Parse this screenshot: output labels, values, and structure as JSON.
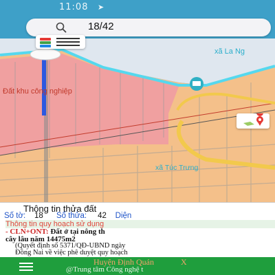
{
  "status_bar": {
    "time": "11:08",
    "nav_glyph": "➤"
  },
  "search": {
    "query": "18/42",
    "icon": "search-icon"
  },
  "map": {
    "labels": {
      "commune_north": "xã La Ng",
      "industrial": "Đất khu công nghiệp",
      "commune_south": "xã Túc Trưng"
    },
    "colors": {
      "agri": "#f4c08a",
      "industrial": "#f0a0a0",
      "boundary": "#55d8ee",
      "road": "#f2c94c",
      "line": "#c23a2b",
      "accent": "#1f9e3d"
    }
  },
  "panel": {
    "title": "Thông tin thửa đất",
    "to_label": "Số tờ:",
    "to_value": "18",
    "thua_label": "Số thửa:",
    "thua_value": "42",
    "area_label": "Diện",
    "planning_header": "Thông tin quy hoạch sử dụng",
    "zoning_code": "- CLN+ONT:",
    "zoning_text_1": "Đất ở tại nông th",
    "zoning_text_2": "cây lâu năm 14475m2",
    "decision_1": "(Quyết định số 5371/QĐ-UBND ngày",
    "decision_2": "Đồng Nai về việc phê duyệt quy hoạch"
  },
  "footer": {
    "line1": "Huyện Định Quán",
    "line1_suffix": "X",
    "line2": "@Trung tâm Công nghệ t"
  }
}
